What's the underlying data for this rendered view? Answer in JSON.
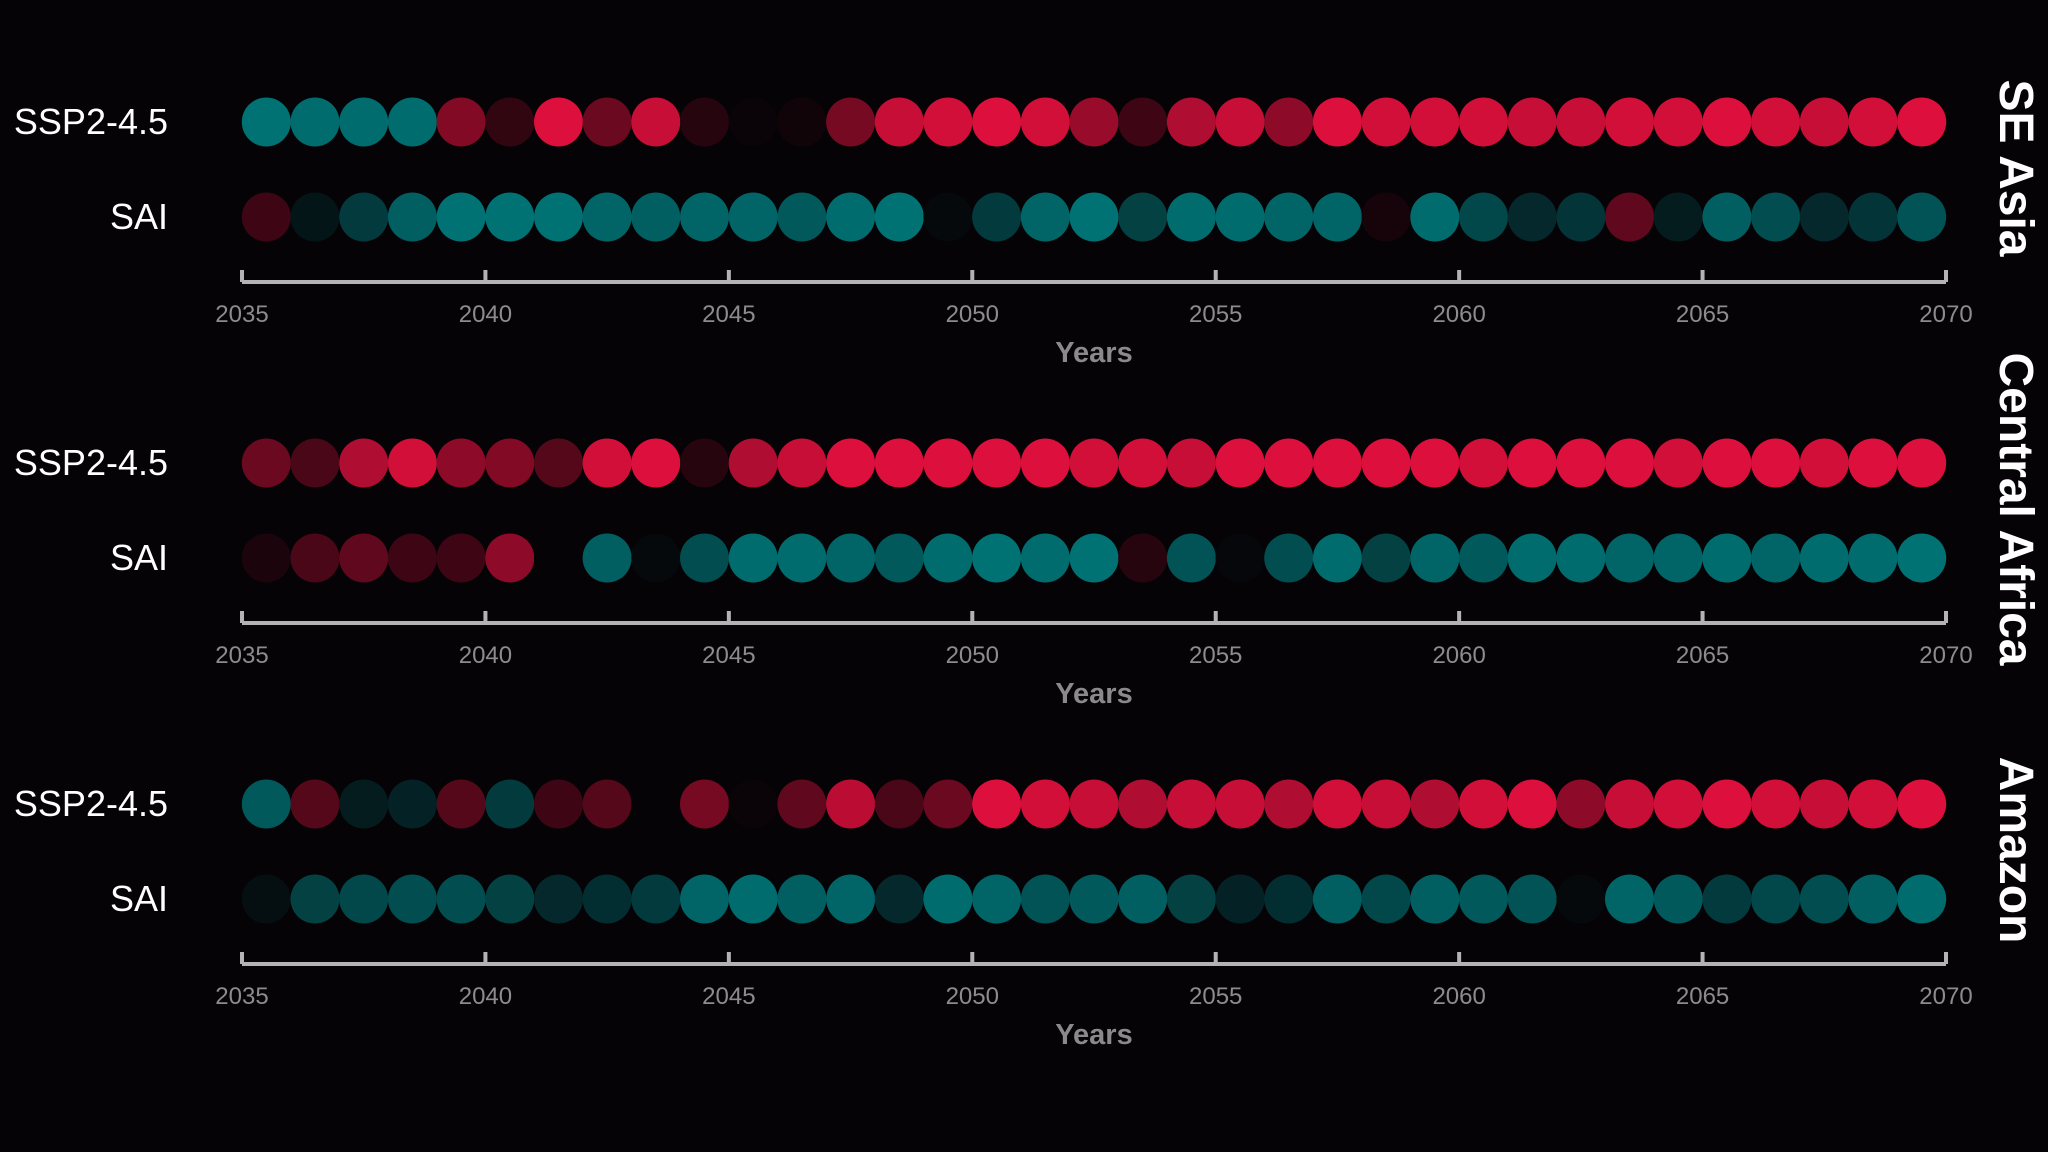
{
  "chart_data": {
    "type": "scatter",
    "description_keys": "dot colour intensity per year, negative = teal, positive = red, range -1..1",
    "years_start": 2035,
    "years_end": 2069,
    "x_axis": {
      "label": "Years",
      "xlim": [
        2035,
        2070
      ],
      "ticks": [
        "2035",
        "2040",
        "2045",
        "2050",
        "2055",
        "2060",
        "2065",
        "2070"
      ]
    },
    "colors": {
      "negative": "#007e80",
      "positive": "#e8103f",
      "background": "#050306",
      "axis": "#b3b3b3"
    },
    "panels": [
      {
        "region": "SE Asia",
        "series": [
          {
            "name": "SSP2-4.5",
            "values": [
              -0.9,
              -0.85,
              -0.85,
              -0.85,
              0.55,
              0.2,
              0.95,
              0.45,
              0.85,
              0.15,
              0.02,
              0.05,
              0.5,
              0.85,
              0.9,
              0.95,
              0.9,
              0.65,
              0.25,
              0.75,
              0.85,
              0.6,
              0.95,
              0.9,
              0.9,
              0.9,
              0.85,
              0.85,
              0.9,
              0.9,
              0.95,
              0.9,
              0.85,
              0.9,
              0.95
            ]
          },
          {
            "name": "SAI",
            "values": [
              0.25,
              -0.15,
              -0.45,
              -0.75,
              -0.9,
              -0.9,
              -0.9,
              -0.8,
              -0.75,
              -0.8,
              -0.8,
              -0.7,
              -0.85,
              -0.9,
              -0.05,
              -0.45,
              -0.8,
              -0.9,
              -0.5,
              -0.85,
              -0.85,
              -0.8,
              -0.8,
              0.08,
              -0.85,
              -0.55,
              -0.3,
              -0.4,
              0.4,
              -0.2,
              -0.75,
              -0.6,
              -0.3,
              -0.4,
              -0.65
            ]
          }
        ]
      },
      {
        "region": "Central Africa",
        "series": [
          {
            "name": "SSP2-4.5",
            "values": [
              0.45,
              0.3,
              0.75,
              0.9,
              0.6,
              0.55,
              0.35,
              0.9,
              0.95,
              0.15,
              0.75,
              0.85,
              0.95,
              0.95,
              0.95,
              0.95,
              0.95,
              0.9,
              0.9,
              0.85,
              0.95,
              0.95,
              0.95,
              0.95,
              0.95,
              0.9,
              0.95,
              0.95,
              0.95,
              0.9,
              0.95,
              0.95,
              0.9,
              0.95,
              0.95
            ]
          },
          {
            "name": "SAI",
            "values": [
              0.1,
              0.3,
              0.4,
              0.25,
              0.25,
              0.6,
              0.0,
              -0.75,
              -0.05,
              -0.6,
              -0.85,
              -0.85,
              -0.8,
              -0.7,
              -0.85,
              -0.9,
              -0.85,
              -0.9,
              0.15,
              -0.65,
              -0.03,
              -0.6,
              -0.85,
              -0.5,
              -0.8,
              -0.7,
              -0.85,
              -0.85,
              -0.8,
              -0.8,
              -0.85,
              -0.8,
              -0.85,
              -0.85,
              -0.9
            ]
          }
        ]
      },
      {
        "region": "Amazon",
        "series": [
          {
            "name": "SSP2-4.5",
            "values": [
              -0.7,
              0.35,
              -0.2,
              -0.25,
              0.35,
              -0.45,
              0.25,
              0.35,
              0.0,
              0.5,
              0.02,
              0.4,
              0.8,
              0.3,
              0.45,
              0.95,
              0.9,
              0.85,
              0.75,
              0.85,
              0.85,
              0.75,
              0.9,
              0.85,
              0.75,
              0.9,
              0.95,
              0.6,
              0.85,
              0.9,
              0.95,
              0.9,
              0.85,
              0.9,
              0.95
            ]
          },
          {
            "name": "SAI",
            "values": [
              -0.1,
              -0.5,
              -0.55,
              -0.6,
              -0.6,
              -0.5,
              -0.3,
              -0.35,
              -0.45,
              -0.8,
              -0.85,
              -0.75,
              -0.8,
              -0.3,
              -0.85,
              -0.8,
              -0.65,
              -0.7,
              -0.75,
              -0.5,
              -0.25,
              -0.35,
              -0.75,
              -0.55,
              -0.75,
              -0.7,
              -0.65,
              -0.05,
              -0.8,
              -0.7,
              -0.45,
              -0.55,
              -0.6,
              -0.75,
              -0.85
            ]
          }
        ]
      }
    ]
  }
}
